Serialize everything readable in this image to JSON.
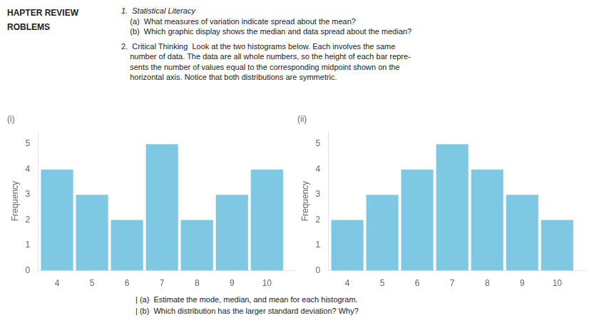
{
  "chart_data": [
    {
      "type": "bar",
      "title": "(i)",
      "x": [
        4,
        5,
        6,
        7,
        8,
        9,
        10
      ],
      "values": [
        4,
        3,
        2,
        5,
        2,
        3,
        4
      ],
      "ylabel": "Frequency",
      "xlim": [
        3.45,
        10.85
      ],
      "xticks": [
        4,
        5,
        6,
        7,
        8,
        9,
        10
      ],
      "ylim": [
        0,
        5.5
      ],
      "yticks": [
        0,
        1,
        2,
        3,
        4,
        5
      ],
      "color": "#7EC8E3",
      "grid": false,
      "annotations": [
        "HAPTER REVIEW",
        "ROBLEMS",
        "1.  Statistical Literacy",
        "    (a)  What measures of variation indicate spread about the mean?",
        "    (b)  Which graphic display shows the median and data spread about the median?",
        "2.  Critical Thinking  Look at the two histograms below. Each involves the same",
        "    number of data. The data are all whole numbers, so the height of each bar repre-",
        "    sents the number of values equal to the corresponding midpoint shown on the",
        "    horizontal axis. Notice that both distributions are symmetric.",
        "| (a)  Estimate the mode, median, and mean for each histogram.",
        "| (b)  Which distribution has the larger standard deviation? Why?"
      ]
    },
    {
      "type": "bar",
      "title": "(ii)",
      "x": [
        4,
        5,
        6,
        7,
        8,
        9,
        10
      ],
      "values": [
        2,
        3,
        4,
        5,
        4,
        3,
        2
      ],
      "ylabel": "Frequency",
      "xlim": [
        3.45,
        10.85
      ],
      "xticks": [
        4,
        5,
        6,
        7,
        8,
        9,
        10
      ],
      "ylim": [
        0,
        5.5
      ],
      "yticks": [
        0,
        1,
        2,
        3,
        4,
        5
      ],
      "color": "#7EC8E3",
      "grid": false
    }
  ]
}
